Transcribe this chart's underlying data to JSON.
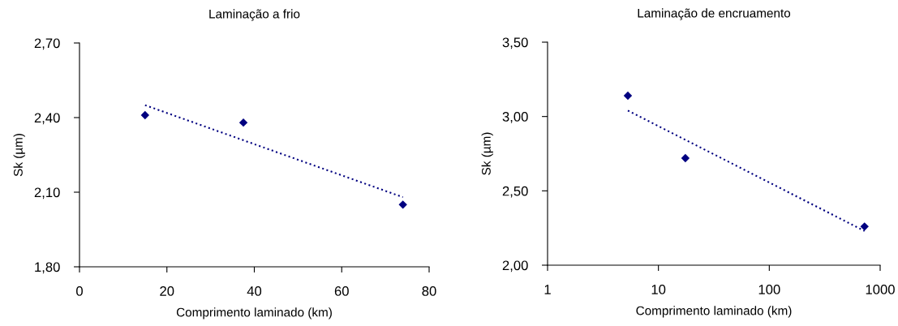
{
  "chart_data": [
    {
      "type": "scatter",
      "title": "Laminação a frio",
      "xlabel": "Comprimento laminado (km)",
      "ylabel": "Sk (µm)",
      "series": [
        {
          "color": "#000080",
          "marker": "diamond",
          "x": [
            15,
            37.5,
            74
          ],
          "values": [
            2.41,
            2.38,
            2.05
          ]
        },
        {
          "type": "line",
          "color": "#000080",
          "marker": "none",
          "line_style": "dotted",
          "x": [
            15,
            74
          ],
          "values": [
            2.45,
            2.08
          ]
        }
      ],
      "xlim": [
        0,
        80
      ],
      "xticks": [
        0,
        20,
        40,
        60,
        80
      ],
      "ylim": [
        1.8,
        2.7
      ],
      "yticks": [
        {
          "value": 1.8,
          "label": "1,80"
        },
        {
          "value": 2.1,
          "label": "2,10"
        },
        {
          "value": 2.4,
          "label": "2,40"
        },
        {
          "value": 2.7,
          "label": "2,70"
        }
      ],
      "grid": false,
      "legend": false
    },
    {
      "type": "scatter",
      "title": "Laminação de encruamento",
      "xlabel": "Comprimento laminado (km)",
      "ylabel": "Sk (µm)",
      "log": "x",
      "series": [
        {
          "color": "#000080",
          "marker": "diamond",
          "x": [
            5.3,
            17.5,
            723
          ],
          "values": [
            3.14,
            2.72,
            2.26
          ]
        },
        {
          "type": "line",
          "color": "#000080",
          "marker": "none",
          "line_style": "dotted",
          "x": [
            5.3,
            723
          ],
          "values": [
            3.04,
            2.23
          ]
        }
      ],
      "xlim": [
        1,
        1000
      ],
      "xticks": [
        1,
        10,
        100,
        1000
      ],
      "ylim": [
        2.0,
        3.5
      ],
      "yticks": [
        {
          "value": 2.0,
          "label": "2,00"
        },
        {
          "value": 2.5,
          "label": "2,50"
        },
        {
          "value": 3.0,
          "label": "3,00"
        },
        {
          "value": 3.5,
          "label": "3,50"
        }
      ],
      "grid": false,
      "legend": false
    }
  ]
}
